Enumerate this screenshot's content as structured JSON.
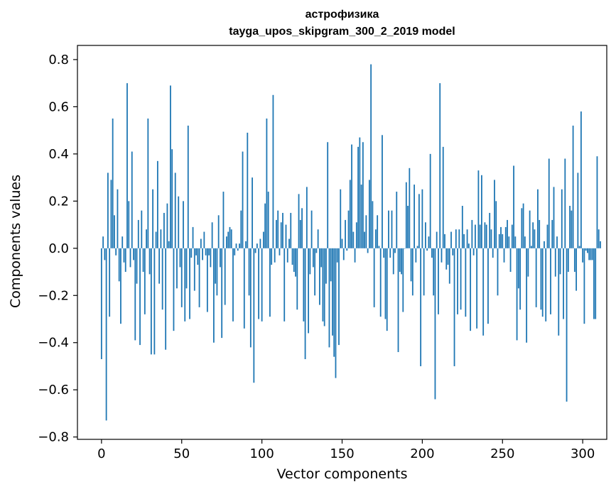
{
  "chart_data": {
    "type": "bar",
    "title": "астрофизика",
    "subtitle": "tayga_upos_skipgram_300_2_2019 model",
    "xlabel": "Vector components",
    "ylabel": "Components values",
    "xlim": [
      -15,
      315
    ],
    "ylim": [
      -0.81,
      0.86
    ],
    "xticks": [
      0,
      50,
      100,
      150,
      200,
      250,
      300
    ],
    "yticks": [
      -0.8,
      -0.6,
      -0.4,
      -0.2,
      0.0,
      0.2,
      0.4,
      0.6,
      0.8
    ],
    "ytick_labels": [
      "−0.8",
      "−0.6",
      "−0.4",
      "−0.2",
      "0.0",
      "0.2",
      "0.4",
      "0.6",
      "0.8"
    ],
    "bar_color": "#1f77b4",
    "values": [
      -0.47,
      0.05,
      -0.05,
      -0.73,
      0.32,
      -0.29,
      0.29,
      0.55,
      0.14,
      -0.03,
      0.25,
      -0.14,
      -0.32,
      0.05,
      -0.06,
      -0.1,
      0.7,
      0.2,
      -0.08,
      0.41,
      -0.05,
      -0.39,
      -0.15,
      0.12,
      -0.41,
      0.16,
      -0.1,
      -0.28,
      0.08,
      0.55,
      -0.11,
      -0.45,
      0.25,
      -0.45,
      0.07,
      0.37,
      -0.15,
      0.08,
      -0.26,
      0.15,
      -0.43,
      0.19,
      0.03,
      0.69,
      0.42,
      -0.35,
      0.32,
      -0.17,
      0.22,
      -0.08,
      -0.25,
      0.2,
      -0.31,
      -0.17,
      0.52,
      -0.3,
      -0.04,
      0.09,
      -0.18,
      -0.03,
      -0.07,
      -0.25,
      0.04,
      -0.05,
      0.07,
      -0.03,
      -0.27,
      -0.03,
      -0.08,
      0.11,
      -0.4,
      -0.15,
      -0.2,
      0.14,
      -0.08,
      -0.38,
      0.24,
      -0.24,
      0.05,
      0.07,
      0.09,
      0.08,
      -0.31,
      -0.03,
      0.02,
      -0.01,
      0.02,
      0.16,
      0.41,
      -0.34,
      0.03,
      0.49,
      -0.2,
      -0.42,
      0.3,
      -0.57,
      -0.02,
      0.02,
      -0.3,
      0.04,
      -0.31,
      0.07,
      0.19,
      0.55,
      0.24,
      -0.29,
      -0.07,
      0.65,
      -0.06,
      0.12,
      0.16,
      -0.03,
      0.11,
      0.15,
      -0.31,
      0.1,
      -0.06,
      0.04,
      0.15,
      -0.07,
      -0.1,
      -0.12,
      -0.26,
      0.23,
      0.12,
      0.17,
      -0.31,
      -0.47,
      0.26,
      -0.36,
      -0.11,
      0.16,
      -0.08,
      -0.2,
      -0.02,
      0.08,
      -0.24,
      -0.08,
      -0.31,
      -0.33,
      -0.15,
      0.45,
      -0.42,
      -0.14,
      -0.37,
      -0.46,
      -0.55,
      -0.06,
      -0.41,
      0.25,
      0.04,
      -0.05,
      0.12,
      -0.01,
      0.16,
      0.29,
      0.44,
      0.07,
      -0.06,
      0.11,
      0.43,
      0.47,
      0.27,
      0.45,
      0.07,
      0.14,
      -0.02,
      0.29,
      0.78,
      0.2,
      -0.25,
      0.08,
      0.14,
      0.01,
      -0.29,
      0.48,
      -0.04,
      -0.3,
      -0.35,
      0.16,
      -0.04,
      0.16,
      -0.11,
      -0.02,
      0.24,
      -0.44,
      -0.1,
      -0.11,
      -0.27,
      0.0,
      0.28,
      0.18,
      0.34,
      -0.14,
      -0.2,
      0.27,
      -0.06,
      0.01,
      0.23,
      -0.5,
      0.25,
      -0.2,
      0.11,
      -0.01,
      0.05,
      0.4,
      -0.04,
      -0.2,
      -0.64,
      0.07,
      -0.28,
      0.7,
      -0.06,
      0.43,
      0.06,
      -0.09,
      -0.07,
      -0.15,
      0.07,
      -0.03,
      -0.5,
      0.08,
      -0.28,
      0.08,
      -0.26,
      0.18,
      0.06,
      -0.29,
      0.08,
      0.02,
      -0.35,
      0.12,
      -0.03,
      0.1,
      -0.34,
      0.33,
      0.1,
      0.31,
      -0.37,
      0.11,
      0.1,
      -0.32,
      0.15,
      0.08,
      -0.04,
      0.29,
      0.2,
      -0.2,
      0.06,
      0.09,
      0.06,
      -0.06,
      0.09,
      0.12,
      0.05,
      -0.1,
      0.1,
      0.35,
      0.05,
      -0.39,
      -0.17,
      -0.26,
      0.17,
      0.19,
      0.05,
      -0.4,
      -0.12,
      0.16,
      0.01,
      0.11,
      0.08,
      -0.25,
      0.25,
      0.12,
      -0.26,
      -0.29,
      0.03,
      -0.31,
      0.1,
      0.38,
      -0.28,
      0.12,
      0.26,
      -0.12,
      0.05,
      -0.37,
      -0.11,
      0.25,
      -0.3,
      0.38,
      -0.65,
      -0.1,
      0.18,
      0.16,
      0.52,
      -0.1,
      -0.18,
      0.32,
      0.01,
      0.58,
      -0.06,
      -0.32,
      -0.01,
      -0.02,
      -0.05,
      -0.05,
      -0.05,
      -0.3,
      -0.3,
      0.39,
      0.08,
      0.03
    ]
  }
}
